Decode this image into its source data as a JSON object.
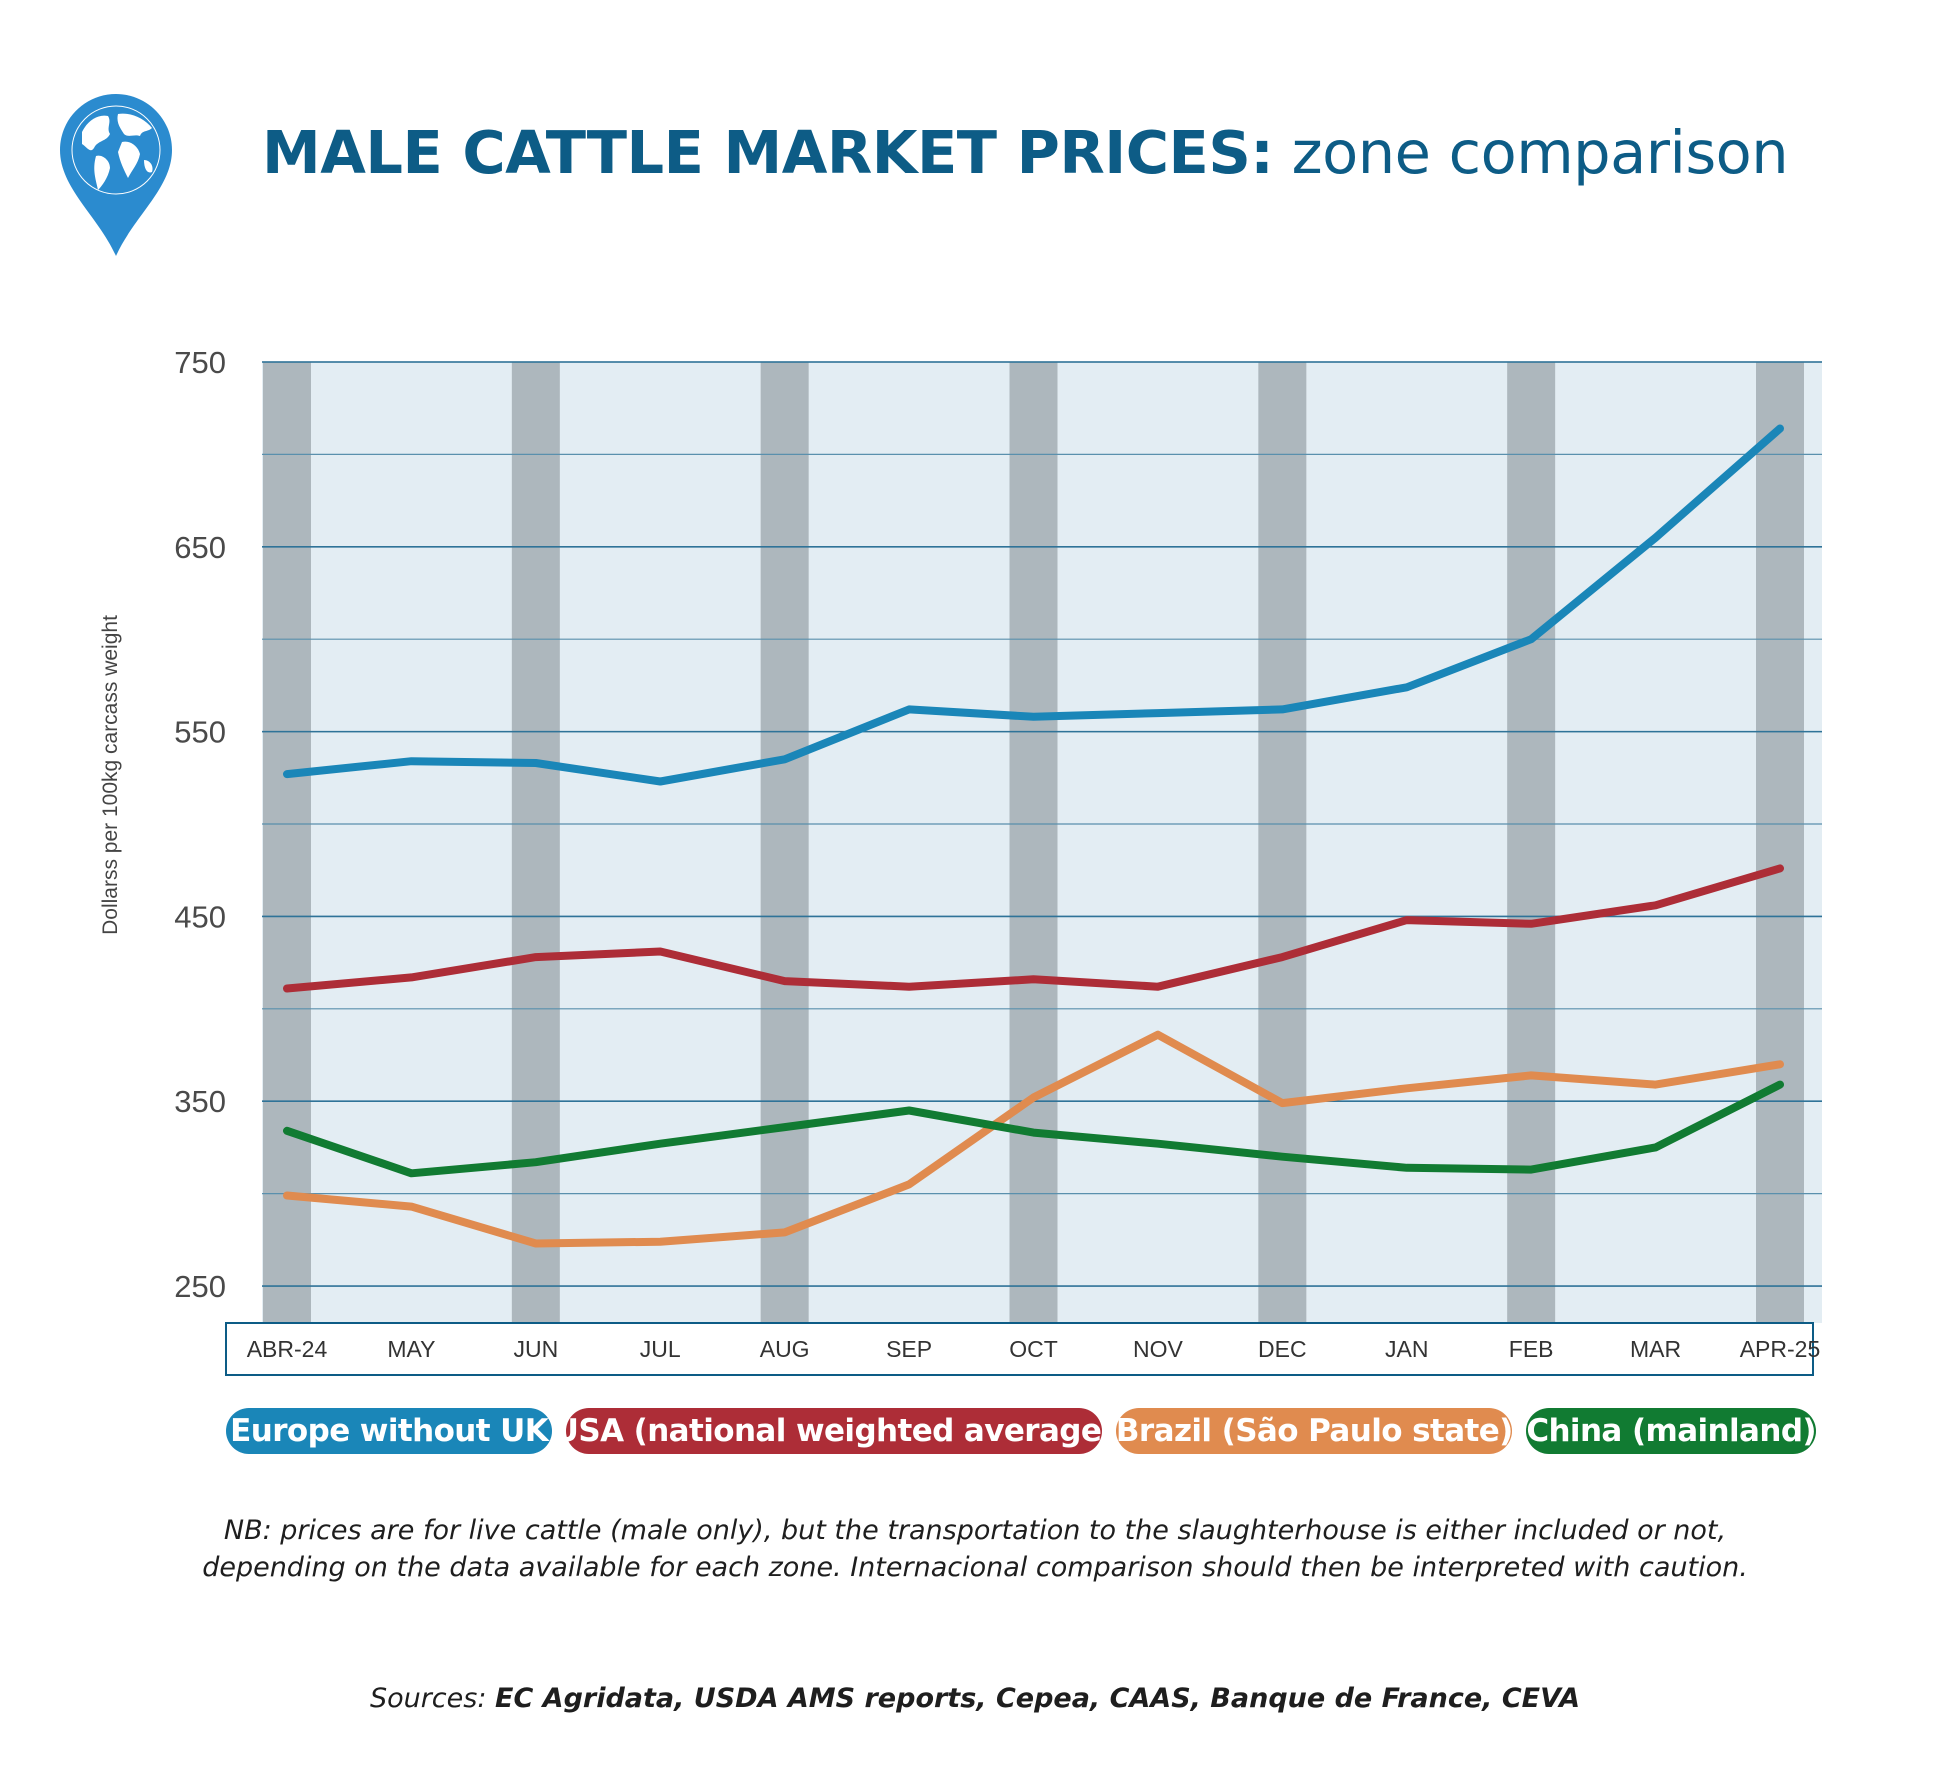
{
  "header": {
    "title_bold": "MALE CATTLE MARKET PRICES:",
    "title_light": " zone comparison"
  },
  "icons": {
    "logo": "globe-map-pin-icon"
  },
  "colors": {
    "europe": "#1a86b8",
    "usa": "#ad2d37",
    "brazil": "#e08b4f",
    "china": "#117b32",
    "title": "#0d5c86"
  },
  "chart_data": {
    "type": "line",
    "title": "",
    "xlabel": "",
    "ylabel": "Dollarss per 100kg carcass weight",
    "ylim": [
      230,
      750
    ],
    "yticks": [
      250,
      350,
      450,
      550,
      650,
      750
    ],
    "grid": true,
    "legend_position": "bottom",
    "categories": [
      "ABR-24",
      "MAY",
      "JUN",
      "JUL",
      "AUG",
      "SEP",
      "OCT",
      "NOV",
      "DEC",
      "JAN",
      "FEB",
      "MAR",
      "APR-25"
    ],
    "series": [
      {
        "name": "Europe without UK",
        "color": "#1a86b8",
        "values": [
          527,
          534,
          533,
          523,
          535,
          562,
          558,
          560,
          562,
          574,
          600,
          655,
          714
        ]
      },
      {
        "name": "USA (national weighted average)",
        "color": "#ad2d37",
        "values": [
          411,
          417,
          428,
          431,
          415,
          412,
          416,
          412,
          428,
          448,
          446,
          456,
          476
        ]
      },
      {
        "name": "Brazil (São Paulo state)",
        "color": "#e08b4f",
        "values": [
          299,
          293,
          273,
          274,
          279,
          305,
          352,
          386,
          349,
          357,
          364,
          359,
          370
        ]
      },
      {
        "name": "China (mainland)",
        "color": "#117b32",
        "values": [
          334,
          311,
          317,
          327,
          336,
          345,
          333,
          327,
          320,
          314,
          313,
          325,
          359
        ]
      }
    ]
  },
  "footer": {
    "note_line1": "NB: prices are for live cattle (male only), but the transportation to the slaughterhouse is either included or not,",
    "note_line2": "depending on the data available for each zone. Internacional comparison should then be interpreted with caution.",
    "sources_label": "Sources: ",
    "sources_value": "EC Agridata, USDA AMS reports, Cepea, CAAS, Banque de France, CEVA"
  }
}
